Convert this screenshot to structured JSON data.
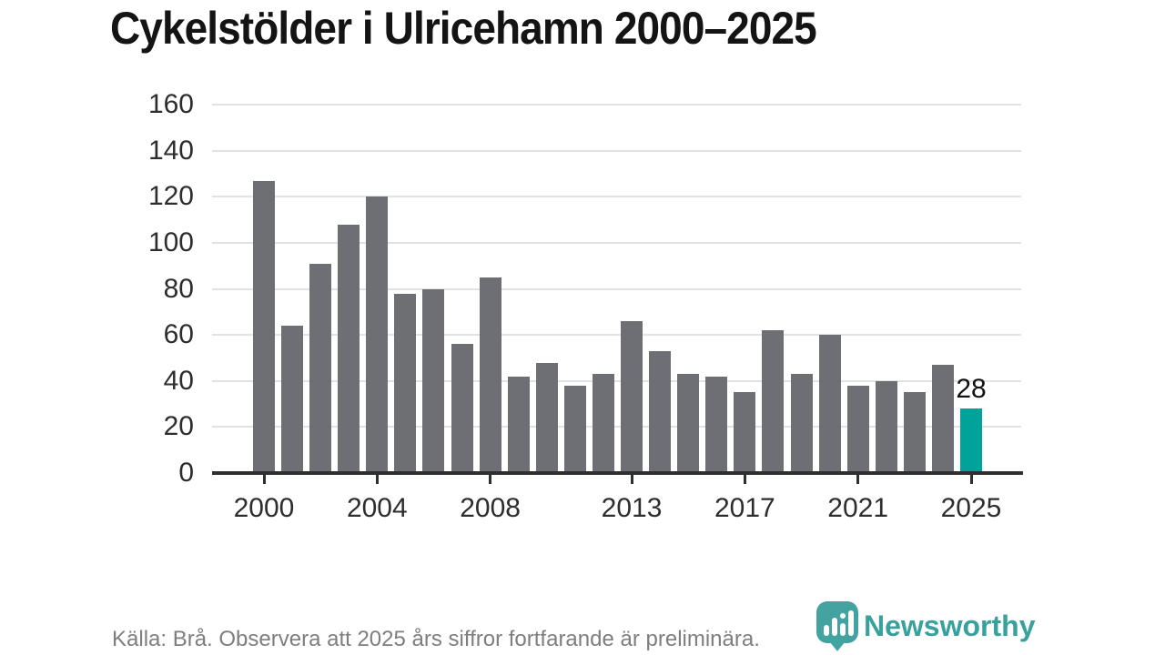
{
  "chart_data": {
    "type": "bar",
    "title": "Cykelstölder i Ulricehamn 2000–2025",
    "xlabel": "",
    "ylabel": "",
    "x": [
      2000,
      2001,
      2002,
      2003,
      2004,
      2005,
      2006,
      2007,
      2008,
      2009,
      2010,
      2011,
      2012,
      2013,
      2014,
      2015,
      2016,
      2017,
      2018,
      2019,
      2020,
      2021,
      2022,
      2023,
      2024,
      2025
    ],
    "values": [
      127,
      64,
      91,
      108,
      120,
      78,
      80,
      56,
      85,
      42,
      48,
      38,
      43,
      66,
      53,
      43,
      42,
      35,
      62,
      43,
      60,
      38,
      40,
      35,
      47,
      28
    ],
    "ylim": [
      0,
      160
    ],
    "yticks": [
      0,
      20,
      40,
      60,
      80,
      100,
      120,
      140,
      160
    ],
    "xticks": [
      2000,
      2004,
      2008,
      2013,
      2017,
      2021,
      2025
    ],
    "grid": true,
    "legend": false,
    "bar_color": "#6e6e75",
    "highlight": {
      "index": 25,
      "label": "28",
      "color": "#00a39a"
    }
  },
  "footer": {
    "source_note": "Källa: Brå. Observera att 2025 års siffror fortfarande är preliminära.",
    "brand": {
      "name": "Newsworthy",
      "color": "#38a19d",
      "icon": "bar-chart-speech-bubble-icon"
    }
  },
  "colors": {
    "background": "#ffffff",
    "grid": "#e2e2e2",
    "axis": "#2f2f2f",
    "tick_text": "#2d2d2d",
    "muted_text": "#7e7e7e"
  }
}
